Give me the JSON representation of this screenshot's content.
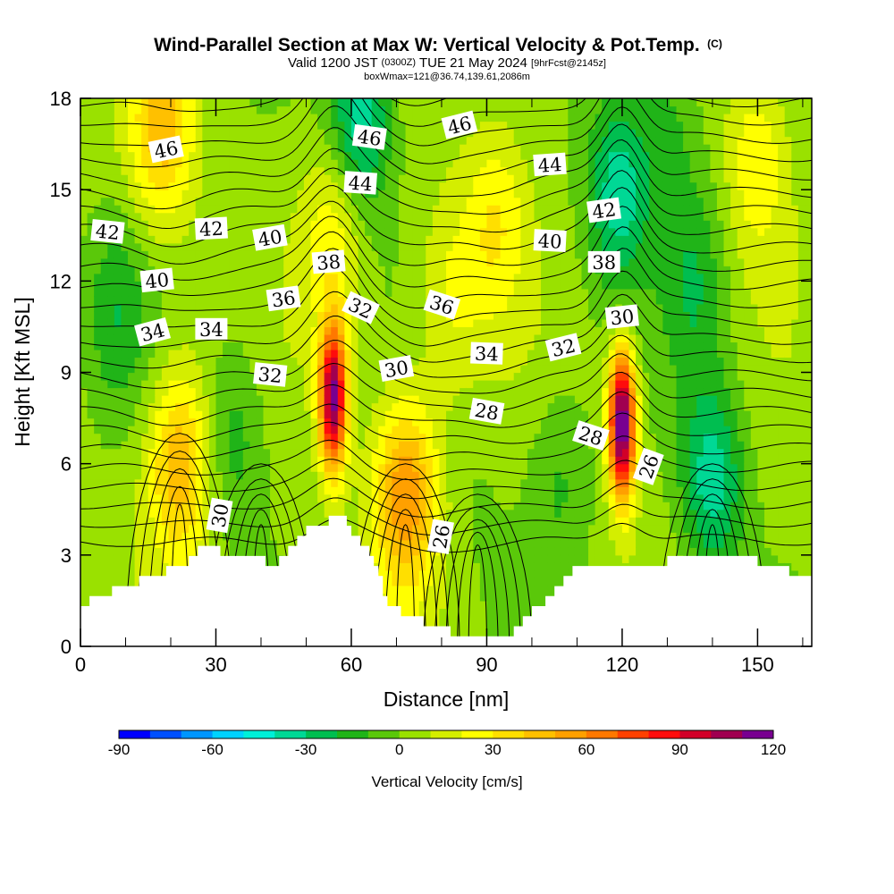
{
  "chart_data": {
    "type": "heatmap",
    "title": "Wind-Parallel Section at Max W: Vertical Velocity & Pot.Temp.",
    "title_mark": "(C)",
    "subtitle_prefix": "Valid 1200 JST",
    "subtitle_zulu": "(0300Z)",
    "subtitle_date": "TUE 21 May 2024",
    "subtitle_fcst": "[9hrFcst@2145z]",
    "subtitle2": "boxWmax=121@36.74,139.61,2086m",
    "xlabel": "Distance [nm]",
    "ylabel": "Height [Kft MSL]",
    "xlim": [
      0,
      162
    ],
    "ylim": [
      0,
      18
    ],
    "x_ticks": [
      0,
      30,
      60,
      90,
      120,
      150
    ],
    "y_ticks": [
      0,
      3,
      6,
      9,
      12,
      15,
      18
    ],
    "colorbar": {
      "title": "Vertical Velocity [cm/s]",
      "min": -90,
      "max": 120,
      "step": 10,
      "tick_labels": [
        -90,
        -60,
        -30,
        0,
        30,
        60,
        90,
        120
      ],
      "colors": [
        "#0000ff",
        "#0050ff",
        "#0096ff",
        "#00d2ff",
        "#00f0d8",
        "#00d895",
        "#00be50",
        "#20b418",
        "#5ac80a",
        "#9ae100",
        "#d4ee00",
        "#ffff00",
        "#ffdf00",
        "#ffc000",
        "#ffa000",
        "#ff7800",
        "#ff4000",
        "#ff0c0c",
        "#d20028",
        "#a00050",
        "#780090"
      ]
    },
    "terrain_kft": [
      [
        0,
        1.3
      ],
      [
        2,
        1.6
      ],
      [
        10,
        2.0
      ],
      [
        16,
        2.3
      ],
      [
        23,
        2.8
      ],
      [
        26,
        3.2
      ],
      [
        39,
        3.0
      ],
      [
        42,
        2.6
      ],
      [
        45,
        3.0
      ],
      [
        48,
        3.6
      ],
      [
        52,
        4.0
      ],
      [
        57,
        4.3
      ],
      [
        61,
        3.6
      ],
      [
        65,
        2.8
      ],
      [
        68,
        1.3
      ],
      [
        73,
        1.0
      ],
      [
        78,
        0.7
      ],
      [
        81,
        0.5
      ],
      [
        84,
        0.3
      ],
      [
        94,
        0.3
      ],
      [
        97,
        0.6
      ],
      [
        100,
        1.3
      ],
      [
        104,
        1.6
      ],
      [
        107,
        2.3
      ],
      [
        110,
        2.6
      ],
      [
        128,
        2.6
      ],
      [
        131,
        3.0
      ],
      [
        148,
        3.0
      ],
      [
        151,
        2.6
      ],
      [
        155,
        2.6
      ],
      [
        158,
        2.3
      ],
      [
        162,
        2.3
      ]
    ],
    "vertical_velocity_features": [
      {
        "x": 56,
        "y": 8.2,
        "peak": 110
      },
      {
        "x": 120,
        "y": 7.3,
        "peak": 121
      },
      {
        "x": 72,
        "y": 5.0,
        "peak": 55
      },
      {
        "x": 22,
        "y": 6.0,
        "peak": 45
      },
      {
        "x": 18,
        "y": 17.0,
        "peak": 40
      },
      {
        "x": 56,
        "y": 13.5,
        "peak": 25
      },
      {
        "x": 92,
        "y": 14.0,
        "peak": 25
      },
      {
        "x": 150,
        "y": 16.0,
        "peak": 25
      },
      {
        "x": 140,
        "y": 5.5,
        "peak": -40
      },
      {
        "x": 62,
        "y": 17.5,
        "peak": -45
      },
      {
        "x": 119,
        "y": 15.0,
        "peak": -40
      },
      {
        "x": 88,
        "y": 5.0,
        "peak": -5
      },
      {
        "x": 136,
        "y": 12.0,
        "peak": -22
      },
      {
        "x": 130,
        "y": 17.0,
        "peak": -18
      },
      {
        "x": 34,
        "y": 7.0,
        "peak": -20
      },
      {
        "x": 8,
        "y": 11.0,
        "peak": -20
      },
      {
        "x": 106,
        "y": 5.5,
        "peak": -15
      },
      {
        "x": 82,
        "y": 11.5,
        "peak": 18
      }
    ],
    "theta_contour_labels": [
      {
        "x": 19,
        "y": 16.3,
        "label": "46"
      },
      {
        "x": 64,
        "y": 16.7,
        "label": "46"
      },
      {
        "x": 84,
        "y": 17.1,
        "label": "46"
      },
      {
        "x": 62,
        "y": 15.2,
        "label": "44"
      },
      {
        "x": 104,
        "y": 15.8,
        "label": "44"
      },
      {
        "x": 6,
        "y": 13.6,
        "label": "42"
      },
      {
        "x": 29,
        "y": 13.7,
        "label": "42"
      },
      {
        "x": 116,
        "y": 14.3,
        "label": "42"
      },
      {
        "x": 17,
        "y": 12.0,
        "label": "40"
      },
      {
        "x": 42,
        "y": 13.4,
        "label": "40"
      },
      {
        "x": 104,
        "y": 13.3,
        "label": "40"
      },
      {
        "x": 55,
        "y": 12.6,
        "label": "38"
      },
      {
        "x": 116,
        "y": 12.6,
        "label": "38"
      },
      {
        "x": 45,
        "y": 11.4,
        "label": "36"
      },
      {
        "x": 80,
        "y": 11.2,
        "label": "36"
      },
      {
        "x": 16,
        "y": 10.3,
        "label": "34"
      },
      {
        "x": 29,
        "y": 10.4,
        "label": "34"
      },
      {
        "x": 90,
        "y": 9.6,
        "label": "34"
      },
      {
        "x": 62,
        "y": 11.1,
        "label": "32"
      },
      {
        "x": 42,
        "y": 8.9,
        "label": "32"
      },
      {
        "x": 107,
        "y": 9.8,
        "label": "32"
      },
      {
        "x": 70,
        "y": 9.1,
        "label": "30"
      },
      {
        "x": 120,
        "y": 10.8,
        "label": "30"
      },
      {
        "x": 31,
        "y": 4.3,
        "label": "30"
      },
      {
        "x": 90,
        "y": 7.7,
        "label": "28"
      },
      {
        "x": 113,
        "y": 6.9,
        "label": "28"
      },
      {
        "x": 126,
        "y": 5.9,
        "label": "26"
      },
      {
        "x": 80,
        "y": 3.6,
        "label": "26"
      }
    ]
  }
}
